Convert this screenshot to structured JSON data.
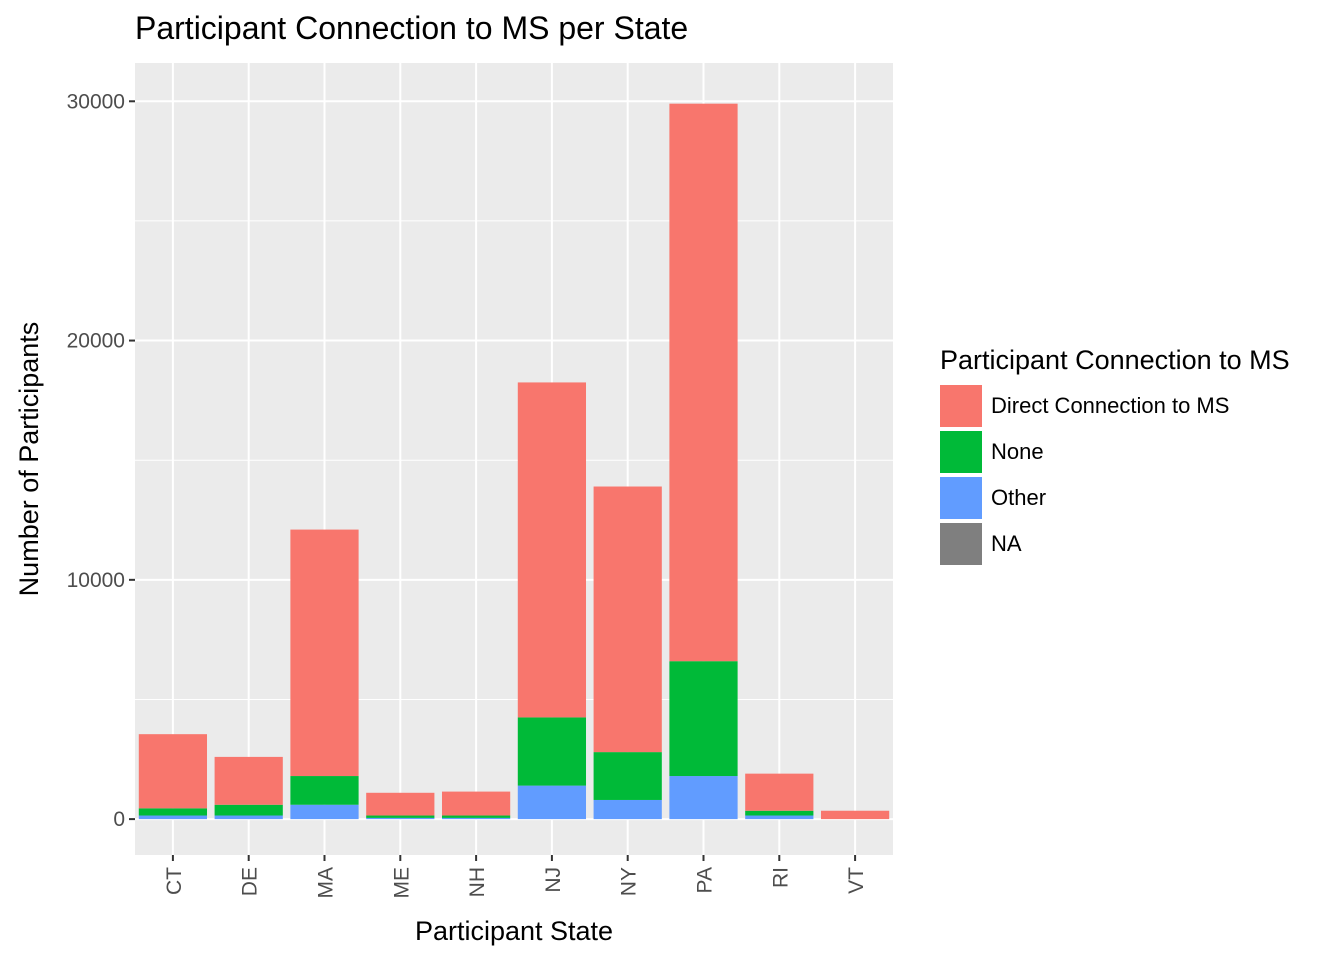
{
  "chart_data": {
    "type": "bar",
    "stacked": true,
    "title": "Participant Connection to MS per State",
    "xlabel": "Participant State",
    "ylabel": "Number of Participants",
    "ylim": [
      -1500,
      31600
    ],
    "yticks": [
      0,
      10000,
      20000,
      30000
    ],
    "ytick_labels": [
      "0",
      "10000",
      "20000",
      "30000"
    ],
    "grid": true,
    "legend_position": "right",
    "legend_title": "Participant Connection to MS",
    "categories": [
      "CT",
      "DE",
      "MA",
      "ME",
      "NH",
      "NJ",
      "NY",
      "PA",
      "RI",
      "VT"
    ],
    "series": [
      {
        "name": "Other",
        "color": "#619CFF",
        "values": [
          150,
          150,
          600,
          50,
          50,
          1400,
          800,
          1800,
          150,
          0
        ]
      },
      {
        "name": "None",
        "color": "#00BA38",
        "values": [
          300,
          450,
          1200,
          100,
          100,
          2850,
          2000,
          4800,
          200,
          0
        ]
      },
      {
        "name": "Direct Connection to MS",
        "color": "#F8766D",
        "values": [
          3100,
          2000,
          10300,
          950,
          1000,
          14000,
          11100,
          23300,
          1550,
          350
        ]
      },
      {
        "name": "NA",
        "color": "#7F7F7F",
        "values": [
          0,
          0,
          0,
          0,
          0,
          0,
          0,
          0,
          0,
          0
        ]
      }
    ],
    "legend_order": [
      "Direct Connection to MS",
      "None",
      "Other",
      "NA"
    ]
  }
}
